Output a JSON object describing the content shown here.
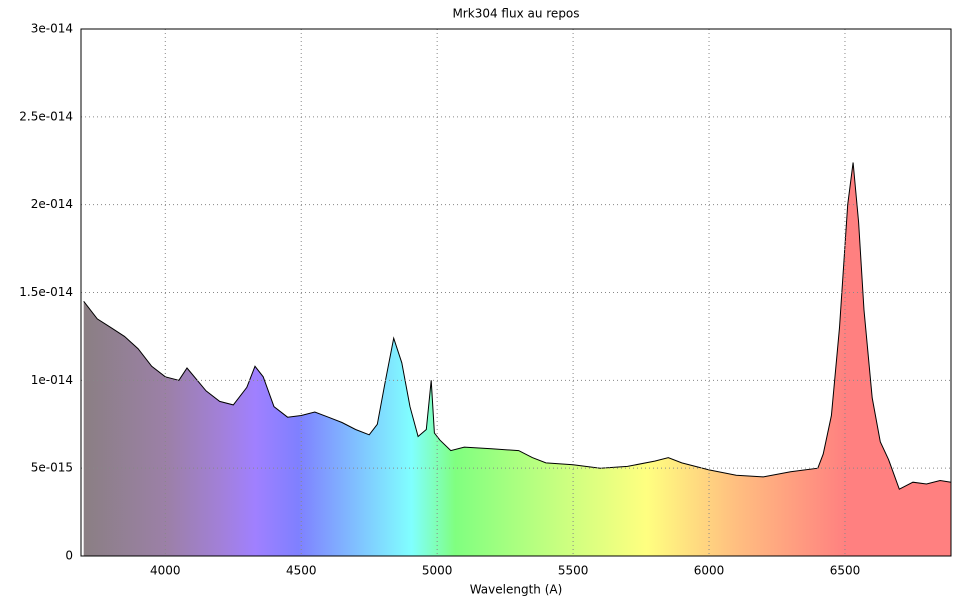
{
  "chart_data": {
    "type": "area",
    "title": "Mrk304 flux au repos",
    "x_label": "Wavelength (A)",
    "x": [
      3700,
      3750,
      3800,
      3850,
      3900,
      3950,
      4000,
      4050,
      4080,
      4150,
      4200,
      4250,
      4300,
      4330,
      4360,
      4400,
      4450,
      4500,
      4550,
      4600,
      4650,
      4700,
      4750,
      4780,
      4810,
      4840,
      4870,
      4900,
      4930,
      4960,
      4978,
      4990,
      5010,
      5050,
      5100,
      5200,
      5300,
      5350,
      5400,
      5500,
      5600,
      5700,
      5800,
      5850,
      5900,
      6000,
      6100,
      6200,
      6300,
      6400,
      6420,
      6450,
      6480,
      6510,
      6530,
      6550,
      6570,
      6600,
      6630,
      6660,
      6700,
      6750,
      6800,
      6850,
      6890
    ],
    "values": [
      1.45e-14,
      1.35e-14,
      1.3e-14,
      1.25e-14,
      1.18e-14,
      1.08e-14,
      1.02e-14,
      1e-14,
      1.07e-14,
      9.4e-15,
      8.8e-15,
      8.6e-15,
      9.6e-15,
      1.08e-14,
      1.02e-14,
      8.5e-15,
      7.9e-15,
      8e-15,
      8.2e-15,
      7.9e-15,
      7.6e-15,
      7.2e-15,
      6.9e-15,
      7.5e-15,
      1e-14,
      1.24e-14,
      1.1e-14,
      8.5e-15,
      6.8e-15,
      7.2e-15,
      1e-14,
      7e-15,
      6.6e-15,
      6e-15,
      6.2e-15,
      6.1e-15,
      6e-15,
      5.6e-15,
      5.3e-15,
      5.2e-15,
      5e-15,
      5.1e-15,
      5.4e-15,
      5.6e-15,
      5.3e-15,
      4.9e-15,
      4.6e-15,
      4.5e-15,
      4.8e-15,
      5e-15,
      5.8e-15,
      8e-15,
      1.3e-14,
      2e-14,
      2.24e-14,
      1.9e-14,
      1.4e-14,
      9e-15,
      6.5e-15,
      5.5e-15,
      3.8e-15,
      4.2e-15,
      4.1e-15,
      4.3e-15,
      4.2e-15
    ],
    "color": "#000000",
    "xlim": [
      3690,
      6890
    ],
    "ylim": [
      0,
      3e-14
    ],
    "xticks": [
      4000,
      4500,
      5000,
      5500,
      6000,
      6500
    ],
    "yticks": [
      0,
      {
        "value": 5e-15,
        "label": "5e-015"
      },
      {
        "value": 1e-14,
        "label": "1e-014"
      },
      {
        "value": 1.5e-14,
        "label": "1.5e-014"
      },
      {
        "value": 2e-14,
        "label": "2e-014"
      },
      {
        "value": 2.5e-14,
        "label": "2.5e-014"
      },
      {
        "value": 3e-14,
        "label": "3e-014"
      }
    ],
    "grid": true
  }
}
